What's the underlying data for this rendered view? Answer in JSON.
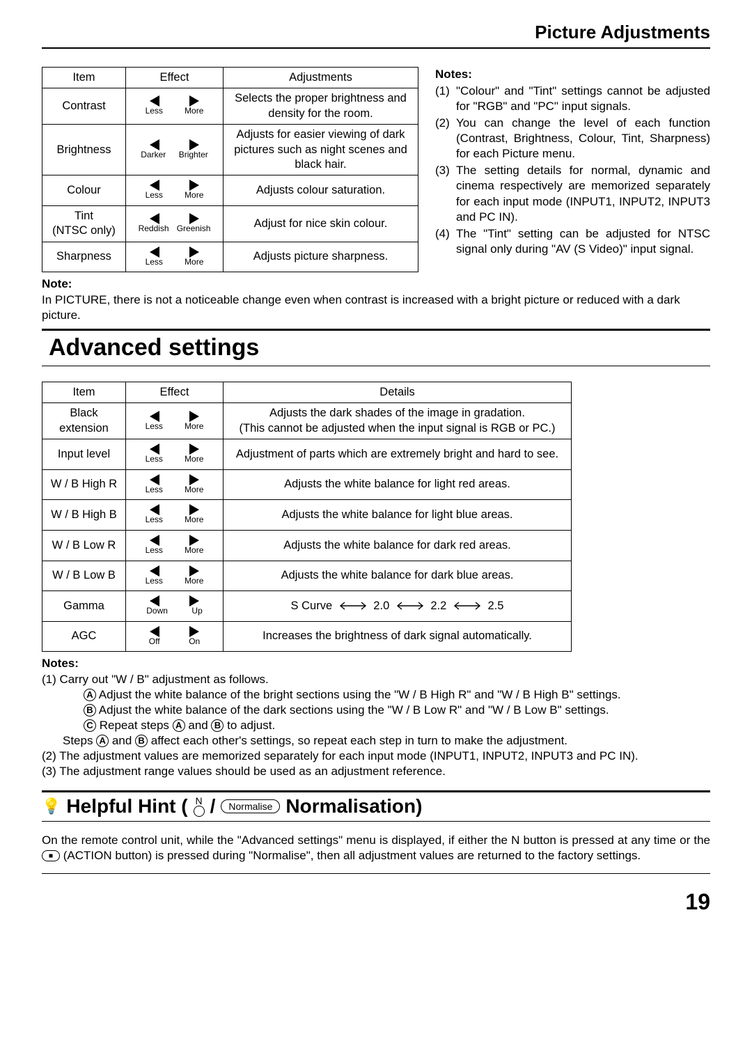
{
  "page_title": "Picture Adjustments",
  "table1": {
    "headers": [
      "Item",
      "Effect",
      "Adjustments"
    ],
    "rows": [
      {
        "item": "Contrast",
        "left": "Less",
        "right": "More",
        "adj": "Selects the proper brightness and density for the room."
      },
      {
        "item": "Brightness",
        "left": "Darker",
        "right": "Brighter",
        "adj": "Adjusts for easier viewing of dark pictures such as night scenes and black hair."
      },
      {
        "item": "Colour",
        "left": "Less",
        "right": "More",
        "adj": "Adjusts colour saturation."
      },
      {
        "item": "Tint\n(NTSC only)",
        "left": "Reddish",
        "right": "Greenish",
        "adj": "Adjust for nice skin colour."
      },
      {
        "item": "Sharpness",
        "left": "Less",
        "right": "More",
        "adj": "Adjusts picture sharpness."
      }
    ]
  },
  "right_notes": {
    "title": "Notes:",
    "items": [
      "\"Colour\" and \"Tint\" settings cannot be adjusted for \"RGB\" and \"PC\" input signals.",
      "You can change the level of each function (Contrast, Brightness, Colour, Tint, Sharpness) for each Picture menu.",
      "The setting details for normal, dynamic and cinema respectively are memorized separately for each input mode (INPUT1, INPUT2, INPUT3 and PC IN).",
      "The \"Tint\" setting can be adjusted for NTSC signal only during \"AV (S Video)\" input signal."
    ]
  },
  "note_below": {
    "title": "Note:",
    "text": "In PICTURE, there is not a noticeable change even when contrast is increased with a bright picture or reduced with a dark picture."
  },
  "section_title": "Advanced settings",
  "table2": {
    "headers": [
      "Item",
      "Effect",
      "Details"
    ],
    "rows": [
      {
        "item": "Black\nextension",
        "left": "Less",
        "right": "More",
        "details": "Adjusts the dark shades of the image in gradation.\n(This cannot be adjusted when the input signal is RGB or PC.)"
      },
      {
        "item": "Input level",
        "left": "Less",
        "right": "More",
        "details": "Adjustment of parts which are extremely bright and hard to see."
      },
      {
        "item": "W / B High R",
        "left": "Less",
        "right": "More",
        "details": "Adjusts the white balance for light red areas."
      },
      {
        "item": "W / B High B",
        "left": "Less",
        "right": "More",
        "details": "Adjusts the white balance for light blue areas."
      },
      {
        "item": "W / B Low R",
        "left": "Less",
        "right": "More",
        "details": "Adjusts the white balance for dark red areas."
      },
      {
        "item": "W / B Low B",
        "left": "Less",
        "right": "More",
        "details": "Adjusts the white balance for dark blue areas."
      },
      {
        "item": "Gamma",
        "left": "Down",
        "right": "Up",
        "details_gamma": [
          "S Curve",
          "2.0",
          "2.2",
          "2.5"
        ]
      },
      {
        "item": "AGC",
        "left": "Off",
        "right": "On",
        "details": "Increases the brightness of dark signal automatically."
      }
    ]
  },
  "bottom_notes": {
    "title": "Notes:",
    "line1": "(1) Carry out \"W / B\" adjustment as follows.",
    "stepA": "Adjust the white balance of the bright sections using the \"W / B High R\" and \"W / B High B\" settings.",
    "stepB": "Adjust the white balance of the dark sections using the \"W / B Low R\" and \"W / B Low B\" settings.",
    "stepC_pre": "Repeat steps ",
    "stepC_mid": " and ",
    "stepC_post": " to adjust.",
    "steps_line_pre": "Steps ",
    "steps_line_mid": " and ",
    "steps_line_post": " affect each other's settings, so repeat each step in turn to make the adjustment.",
    "line2": "(2) The adjustment values are memorized separately for each input mode (INPUT1, INPUT2, INPUT3 and PC IN).",
    "line3": "(3) The adjustment range values should be used as an adjustment reference."
  },
  "hint": {
    "label_pre": "Helpful Hint (",
    "n_label": "N",
    "slash": "/",
    "normalise": "Normalise",
    "label_post": "Normalisation)",
    "text_pre": "On the remote control unit, while the \"Advanced settings\" menu is displayed, if either the N button is pressed at any time or the ",
    "text_post": " (ACTION button) is pressed during \"Normalise\", then all adjustment values are returned to the factory settings."
  },
  "page_num": "19"
}
